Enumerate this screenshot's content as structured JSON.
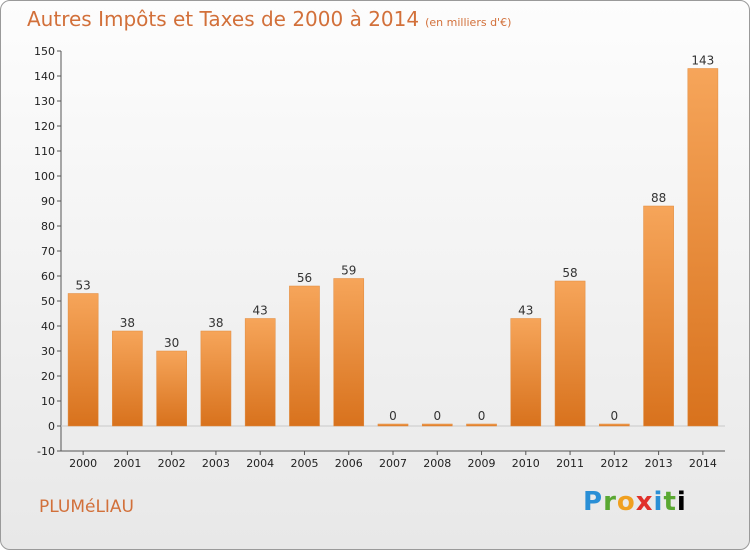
{
  "title": "Autres Impôts et Taxes de 2000 à 2014",
  "subtitle": "(en milliers d'€)",
  "commune": "PLUMéLIAU",
  "logo": [
    "P",
    "r",
    "o",
    "x",
    "i",
    "t",
    "i"
  ],
  "colors": {
    "bar_top": "#f6a55a",
    "bar_bottom": "#d8721d",
    "title": "#d2703a"
  },
  "chart_data": {
    "type": "bar",
    "categories": [
      "2000",
      "2001",
      "2002",
      "2003",
      "2004",
      "2005",
      "2006",
      "2007",
      "2008",
      "2009",
      "2010",
      "2011",
      "2012",
      "2013",
      "2014"
    ],
    "values": [
      53,
      38,
      30,
      38,
      43,
      56,
      59,
      0,
      0,
      0,
      43,
      58,
      0,
      88,
      143
    ],
    "value_labels": [
      "53",
      "38",
      "30",
      "38",
      "43",
      "56",
      "59",
      "0",
      "0",
      "0",
      "43",
      "58",
      "0",
      "88",
      "143"
    ],
    "ylim": [
      -10,
      150
    ],
    "yticks": [
      -10,
      0,
      10,
      20,
      30,
      40,
      50,
      60,
      70,
      80,
      90,
      100,
      110,
      120,
      130,
      140,
      150
    ],
    "grid": false,
    "title": "Autres Impôts et Taxes de 2000 à 2014",
    "subtitle": "(en milliers d'€)"
  }
}
